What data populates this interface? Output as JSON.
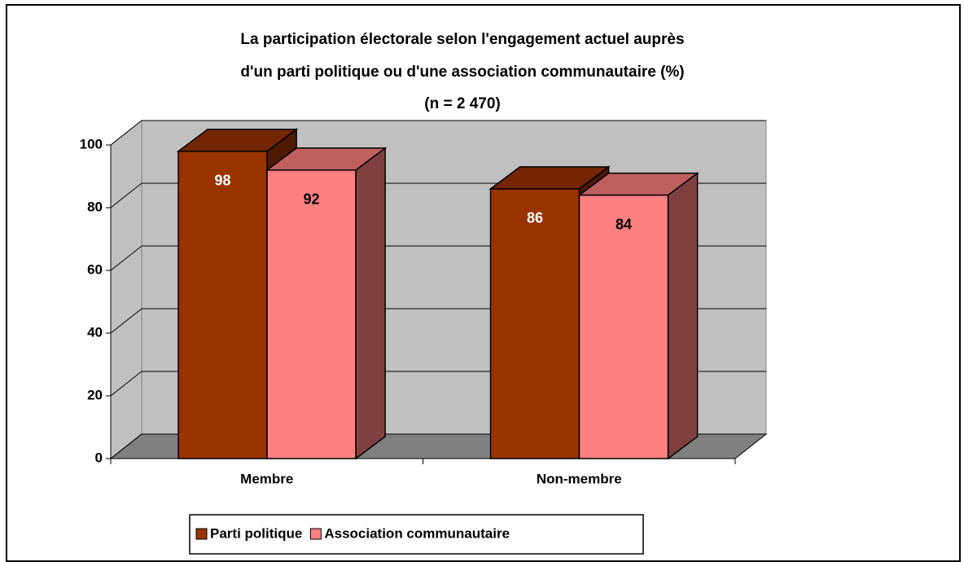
{
  "chart_data": {
    "type": "bar3d",
    "title": [
      "La participation électorale selon l'engagement actuel auprès",
      "d'un parti politique ou d'une association communautaire (%)",
      "(n = 2 470)"
    ],
    "categories": [
      "Membre",
      "Non-membre"
    ],
    "series": [
      {
        "name": "Parti politique",
        "color": "#993300",
        "values": [
          98,
          86
        ]
      },
      {
        "name": "Association communautaire",
        "color": "#FF8080",
        "values": [
          92,
          84
        ]
      }
    ],
    "ylim": [
      0,
      100
    ],
    "yticks": [
      0,
      20,
      40,
      60,
      80,
      100
    ],
    "grid": true,
    "legend": "bottom"
  }
}
